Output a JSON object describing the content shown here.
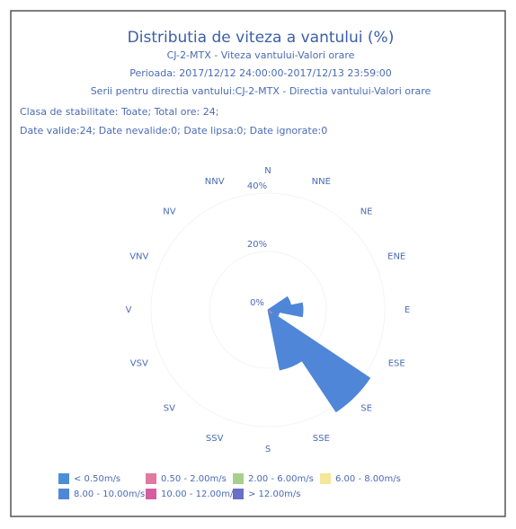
{
  "chart_data": {
    "type": "wind_rose",
    "title": "Distributia de viteza a vantului (%)",
    "subtitle_lines": [
      "CJ-2-MTX - Viteza vantului-Valori orare",
      "Perioada: 2017/12/12 24:00:00-2017/12/13 23:59:00",
      "Serii pentru directia vantului:CJ-2-MTX - Directia vantului-Valori orare"
    ],
    "info_lines": [
      "Clasa de stabilitate: Toate; Total ore: 24;",
      "Date valide:24; Date nevalide:0; Date lipsa:0; Date ignorate:0"
    ],
    "categories": [
      "N",
      "NNE",
      "NE",
      "ENE",
      "E",
      "ESE",
      "SE",
      "SSE",
      "S",
      "SSV",
      "SV",
      "VSV",
      "V",
      "VNV",
      "NV",
      "NNV"
    ],
    "series": [
      {
        "name": "< 0.50m/s",
        "color": "#4a8fd6",
        "values": [
          0,
          0,
          0,
          0,
          0,
          0,
          0,
          0,
          0,
          0,
          0,
          0,
          0,
          0,
          0,
          0
        ]
      },
      {
        "name": "0.50 - 2.00m/s",
        "color": "#e07aa0",
        "values": [
          0,
          0,
          0,
          0,
          0,
          0,
          2,
          0,
          0,
          0,
          0,
          0,
          0,
          0,
          0,
          0
        ]
      },
      {
        "name": "2.00 - 6.00m/s",
        "color": "#a8d08d",
        "values": [
          0,
          0,
          0,
          0,
          0,
          0,
          0,
          0,
          0,
          0,
          0,
          0,
          0,
          0,
          0,
          0
        ]
      },
      {
        "name": "6.00 - 8.00m/s",
        "color": "#f5e79a",
        "values": [
          0,
          0,
          0,
          0,
          0,
          0,
          0,
          0,
          0,
          0,
          0,
          0,
          0,
          0,
          0,
          0
        ]
      },
      {
        "name": "8.00 - 10.00m/s",
        "color": "#4f86d8",
        "values": [
          0,
          0,
          0,
          8,
          12,
          4,
          40,
          21,
          0,
          0,
          0,
          0,
          0,
          0,
          0,
          0
        ]
      },
      {
        "name": "10.00 - 12.00m/s",
        "color": "#d45fa0",
        "values": [
          0,
          0,
          0,
          0,
          0,
          0,
          0,
          0,
          0,
          0,
          0,
          0,
          0,
          0,
          0,
          0
        ]
      },
      {
        "name": "> 12.00m/s",
        "color": "#6a6fc8",
        "values": [
          0,
          0,
          0,
          0,
          0,
          0,
          0,
          0,
          0,
          0,
          0,
          0,
          0,
          0,
          0,
          0
        ]
      }
    ],
    "ylim": [
      0,
      40
    ],
    "yticks": [
      {
        "value": 0,
        "label": "0%"
      },
      {
        "value": 20,
        "label": "20%"
      },
      {
        "value": 40,
        "label": "40%"
      }
    ]
  }
}
